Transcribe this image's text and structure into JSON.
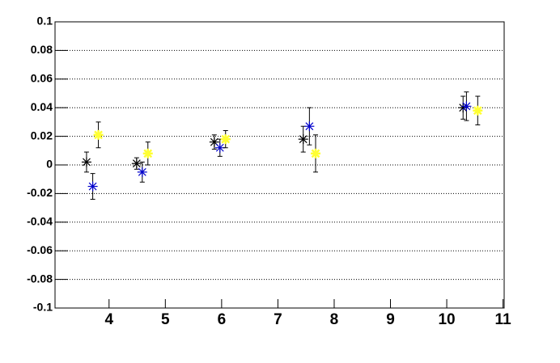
{
  "chart_data": {
    "type": "errorbar-scatter",
    "xlim": [
      3.04,
      11.02
    ],
    "xticks": [
      4,
      5,
      6,
      7,
      8,
      9,
      10,
      11
    ],
    "ylim": [
      -0.1,
      0.1
    ],
    "yticks": [
      -0.1,
      -0.08,
      -0.06,
      -0.04,
      -0.02,
      0,
      0.02,
      0.04,
      0.06,
      0.08,
      0.1
    ],
    "grid": true,
    "series": [
      {
        "color": "#000000",
        "marker": "star",
        "x": [
          3.6,
          4.49,
          5.87,
          7.45,
          10.29
        ],
        "values": [
          0.002,
          0.001,
          0.016,
          0.018,
          0.04
        ],
        "errors": [
          0.007,
          0.004,
          0.005,
          0.009,
          0.008
        ]
      },
      {
        "color": "#0000cc",
        "marker": "star",
        "x": [
          3.71,
          4.59,
          5.97,
          7.56,
          10.35
        ],
        "values": [
          -0.015,
          -0.005,
          0.012,
          0.027,
          0.041
        ],
        "errors": [
          0.009,
          0.007,
          0.006,
          0.013,
          0.01
        ]
      },
      {
        "color": "#ffff33",
        "marker": "star",
        "x": [
          3.81,
          4.69,
          6.07,
          7.67,
          10.55
        ],
        "values": [
          0.021,
          0.008,
          0.018,
          0.008,
          0.038
        ],
        "errors": [
          0.009,
          0.008,
          0.006,
          0.013,
          0.01
        ]
      }
    ]
  }
}
